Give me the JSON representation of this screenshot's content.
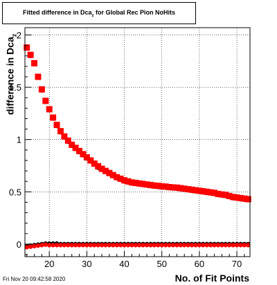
{
  "title": {
    "prefix": "Fitted difference in Dca",
    "subscript": "z",
    "suffix": " for Global Rec Pion NoHits"
  },
  "footer_text": "Fri Nov 20 09:42:58 2020",
  "chart_data": {
    "type": "scatter",
    "title": "Fitted difference in Dcaz for Global Rec Pion NoHits",
    "xlabel": "No. of Fit Points",
    "ylabel": "difference in Dcaz",
    "ylabel_prefix": "difference in Dca",
    "ylabel_subscript": "z",
    "xlim": [
      13.5,
      73.5
    ],
    "ylim": [
      -0.12,
      2.07
    ],
    "xticks": [
      20,
      30,
      40,
      50,
      60,
      70
    ],
    "yticks": [
      0,
      0.5,
      1,
      1.5,
      2
    ],
    "ytick_labels": [
      "0",
      "0.5",
      "1",
      "1.5",
      "2"
    ],
    "grid": true,
    "series": [
      {
        "marker": "circle",
        "color": "#000000",
        "x": [
          14,
          15,
          16,
          17,
          18,
          19,
          20,
          21,
          22,
          23,
          24,
          25,
          26,
          27,
          28,
          29,
          30,
          31,
          32,
          33,
          34,
          35,
          36,
          37,
          38,
          39,
          40,
          41,
          42,
          43,
          44,
          45,
          46,
          47,
          48,
          49,
          50,
          51,
          52,
          53,
          54,
          55,
          56,
          57,
          58,
          59,
          60,
          61,
          62,
          63,
          64,
          65,
          66,
          67,
          68,
          69,
          70,
          71,
          72,
          73
        ],
        "y": [
          1.87,
          1.8,
          1.72,
          1.59,
          1.47,
          1.36,
          1.28,
          1.2,
          1.13,
          1.07,
          1.02,
          0.98,
          0.94,
          0.91,
          0.88,
          0.85,
          0.82,
          0.79,
          0.76,
          0.73,
          0.71,
          0.69,
          0.67,
          0.65,
          0.63,
          0.615,
          0.6,
          0.59,
          0.58,
          0.575,
          0.57,
          0.565,
          0.56,
          0.555,
          0.55,
          0.547,
          0.543,
          0.54,
          0.535,
          0.532,
          0.53,
          0.525,
          0.52,
          0.515,
          0.51,
          0.505,
          0.5,
          0.495,
          0.49,
          0.485,
          0.48,
          0.47,
          0.465,
          0.46,
          0.45,
          0.44,
          0.435,
          0.43,
          0.425,
          0.42
        ]
      },
      {
        "marker": "circle",
        "color": "#000000",
        "x": [
          14,
          15,
          16,
          17,
          18,
          19,
          20,
          21,
          22,
          23,
          24,
          25,
          26,
          27,
          28,
          29,
          30,
          31,
          32,
          33,
          34,
          35,
          36,
          37,
          38,
          39,
          40,
          41,
          42,
          43,
          44,
          45,
          46,
          47,
          48,
          49,
          50,
          51,
          52,
          53,
          54,
          55,
          56,
          57,
          58,
          59,
          60,
          61,
          62,
          63,
          64,
          65,
          66,
          67,
          68,
          69,
          70,
          71,
          72,
          73
        ],
        "y": [
          -0.02,
          -0.015,
          -0.01,
          -0.005,
          0.0,
          0.005,
          0.005,
          0.005,
          0.005,
          0.0,
          0.0,
          0.0,
          0.0,
          0.0,
          0.0,
          0.0,
          0.0,
          0.0,
          0.0,
          0.0,
          0.0,
          0.0,
          0.0,
          0.0,
          0.0,
          0.0,
          0.0,
          0.0,
          0.0,
          0.0,
          0.0,
          0.0,
          0.0,
          0.0,
          0.0,
          0.0,
          0.0,
          0.0,
          0.0,
          0.0,
          0.0,
          0.0,
          0.0,
          0.0,
          0.0,
          0.0,
          0.0,
          0.0,
          0.0,
          0.0,
          0.0,
          0.0,
          0.0,
          0.0,
          0.0,
          0.0,
          0.0,
          0.0,
          0.0,
          0.0
        ]
      },
      {
        "marker": "square",
        "color": "#ff0000",
        "x": [
          14,
          15,
          16,
          17,
          18,
          19,
          20,
          21,
          22,
          23,
          24,
          25,
          26,
          27,
          28,
          29,
          30,
          31,
          32,
          33,
          34,
          35,
          36,
          37,
          38,
          39,
          40,
          41,
          42,
          43,
          44,
          45,
          46,
          47,
          48,
          49,
          50,
          51,
          52,
          53,
          54,
          55,
          56,
          57,
          58,
          59,
          60,
          61,
          62,
          63,
          64,
          65,
          66,
          67,
          68,
          69,
          70,
          71,
          72,
          73
        ],
        "y": [
          1.88,
          1.81,
          1.73,
          1.6,
          1.48,
          1.37,
          1.29,
          1.21,
          1.14,
          1.08,
          1.03,
          0.99,
          0.95,
          0.92,
          0.89,
          0.86,
          0.83,
          0.8,
          0.77,
          0.745,
          0.72,
          0.7,
          0.68,
          0.66,
          0.64,
          0.625,
          0.61,
          0.6,
          0.59,
          0.585,
          0.58,
          0.575,
          0.57,
          0.565,
          0.56,
          0.557,
          0.553,
          0.55,
          0.545,
          0.542,
          0.54,
          0.535,
          0.53,
          0.525,
          0.52,
          0.515,
          0.51,
          0.505,
          0.5,
          0.495,
          0.49,
          0.48,
          0.475,
          0.47,
          0.46,
          0.45,
          0.445,
          0.44,
          0.435,
          0.43
        ]
      },
      {
        "marker": "circle",
        "color": "#ff0000",
        "x": [
          14,
          15,
          16,
          17,
          18,
          19,
          20,
          21,
          22,
          23,
          24,
          25,
          26,
          27,
          28,
          29,
          30,
          31,
          32,
          33,
          34,
          35,
          36,
          37,
          38,
          39,
          40,
          41,
          42,
          43,
          44,
          45,
          46,
          47,
          48,
          49,
          50,
          51,
          52,
          53,
          54,
          55,
          56,
          57,
          58,
          59,
          60,
          61,
          62,
          63,
          64,
          65,
          66,
          67,
          68,
          69,
          70,
          71,
          72,
          73
        ],
        "y": [
          -0.03,
          -0.025,
          -0.02,
          -0.015,
          -0.01,
          -0.005,
          -0.01,
          -0.01,
          -0.01,
          -0.01,
          -0.01,
          -0.01,
          -0.01,
          -0.01,
          -0.01,
          -0.01,
          -0.01,
          -0.01,
          -0.01,
          -0.01,
          -0.01,
          -0.01,
          -0.01,
          -0.01,
          -0.01,
          -0.01,
          -0.01,
          -0.01,
          -0.01,
          -0.01,
          -0.01,
          -0.01,
          -0.01,
          -0.01,
          -0.01,
          -0.01,
          -0.01,
          -0.01,
          -0.01,
          -0.01,
          -0.01,
          -0.01,
          -0.01,
          -0.01,
          -0.01,
          -0.01,
          -0.01,
          -0.01,
          -0.01,
          -0.01,
          -0.01,
          -0.01,
          -0.01,
          -0.01,
          -0.01,
          -0.01,
          -0.01,
          -0.01,
          -0.01,
          -0.01
        ]
      }
    ]
  }
}
